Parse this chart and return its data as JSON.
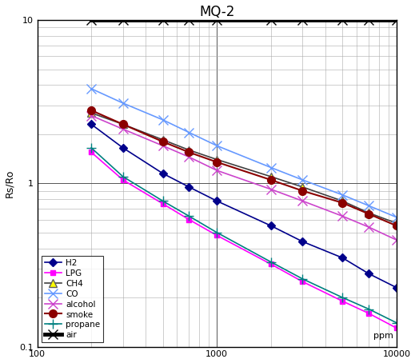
{
  "title": "MQ-2",
  "xlabel": "ppm",
  "ylabel": "Rs/Ro",
  "xlim": [
    100,
    10000
  ],
  "ylim": [
    0.1,
    10
  ],
  "series": {
    "H2": {
      "color": "#00008B",
      "marker": "D",
      "markersize": 5,
      "markerfacecolor": "#00008B",
      "markeredgecolor": "#00008B",
      "linewidth": 1.2,
      "linestyle": "-",
      "x": [
        200,
        300,
        500,
        700,
        1000,
        2000,
        3000,
        5000,
        7000,
        10000
      ],
      "y": [
        2.3,
        1.65,
        1.15,
        0.95,
        0.78,
        0.55,
        0.44,
        0.35,
        0.28,
        0.23
      ]
    },
    "LPG": {
      "color": "#FF00FF",
      "marker": "s",
      "markersize": 5,
      "markerfacecolor": "#FF00FF",
      "markeredgecolor": "#FF00FF",
      "linewidth": 1.2,
      "linestyle": "-",
      "x": [
        200,
        300,
        500,
        700,
        1000,
        2000,
        3000,
        5000,
        7000,
        10000
      ],
      "y": [
        1.55,
        1.05,
        0.75,
        0.6,
        0.48,
        0.32,
        0.25,
        0.19,
        0.16,
        0.13
      ]
    },
    "CH4": {
      "color": "#404040",
      "marker": "^",
      "markersize": 7,
      "markerfacecolor": "#FFFF00",
      "markeredgecolor": "#606060",
      "linewidth": 1.2,
      "linestyle": "-",
      "x": [
        200,
        300,
        500,
        700,
        1000,
        2000,
        3000,
        5000,
        7000,
        10000
      ],
      "y": [
        2.7,
        2.3,
        1.85,
        1.6,
        1.4,
        1.1,
        0.95,
        0.78,
        0.66,
        0.57
      ]
    },
    "CO": {
      "color": "#6699FF",
      "marker": "x",
      "markersize": 8,
      "markerfacecolor": "#6699FF",
      "markeredgecolor": "#6699FF",
      "linewidth": 1.2,
      "linestyle": "-",
      "x": [
        200,
        300,
        500,
        700,
        1000,
        2000,
        3000,
        5000,
        7000,
        10000
      ],
      "y": [
        3.8,
        3.1,
        2.45,
        2.05,
        1.7,
        1.25,
        1.05,
        0.85,
        0.73,
        0.62
      ]
    },
    "alcohol": {
      "color": "#CC44CC",
      "marker": "x",
      "markersize": 8,
      "markerfacecolor": "#CC44CC",
      "markeredgecolor": "#CC44CC",
      "linewidth": 1.2,
      "linestyle": "-",
      "x": [
        200,
        300,
        500,
        700,
        1000,
        2000,
        3000,
        5000,
        7000,
        10000
      ],
      "y": [
        2.6,
        2.15,
        1.7,
        1.45,
        1.2,
        0.92,
        0.78,
        0.63,
        0.54,
        0.45
      ]
    },
    "smoke": {
      "color": "#8B0000",
      "marker": "o",
      "markersize": 7,
      "markerfacecolor": "#8B0000",
      "markeredgecolor": "#8B0000",
      "linewidth": 1.5,
      "linestyle": "-",
      "x": [
        200,
        300,
        500,
        700,
        1000,
        2000,
        3000,
        5000,
        7000,
        10000
      ],
      "y": [
        2.8,
        2.3,
        1.8,
        1.55,
        1.35,
        1.05,
        0.9,
        0.76,
        0.65,
        0.55
      ]
    },
    "propane": {
      "color": "#008080",
      "marker": "+",
      "markersize": 8,
      "markerfacecolor": "#008080",
      "markeredgecolor": "#008080",
      "linewidth": 1.2,
      "linestyle": "-",
      "x": [
        200,
        300,
        500,
        700,
        1000,
        2000,
        3000,
        5000,
        7000,
        10000
      ],
      "y": [
        1.65,
        1.1,
        0.78,
        0.63,
        0.5,
        0.33,
        0.26,
        0.2,
        0.17,
        0.14
      ]
    },
    "air": {
      "color": "#000000",
      "marker": "x",
      "markersize": 9,
      "markerfacecolor": "#000000",
      "markeredgecolor": "#000000",
      "linewidth": 3.5,
      "linestyle": "-",
      "x": [
        200,
        300,
        500,
        700,
        1000,
        2000,
        3000,
        5000,
        7000,
        10000
      ],
      "y": [
        10,
        10,
        10,
        10,
        10,
        10,
        10,
        10,
        10,
        10
      ]
    }
  },
  "legend_labels": [
    "H2",
    "LPG",
    "CH4",
    "CO",
    "alcohol",
    "smoke",
    "propane",
    "air"
  ],
  "background_color": "#FFFFFF",
  "grid_major_color": "#555555",
  "grid_minor_color": "#AAAAAA"
}
